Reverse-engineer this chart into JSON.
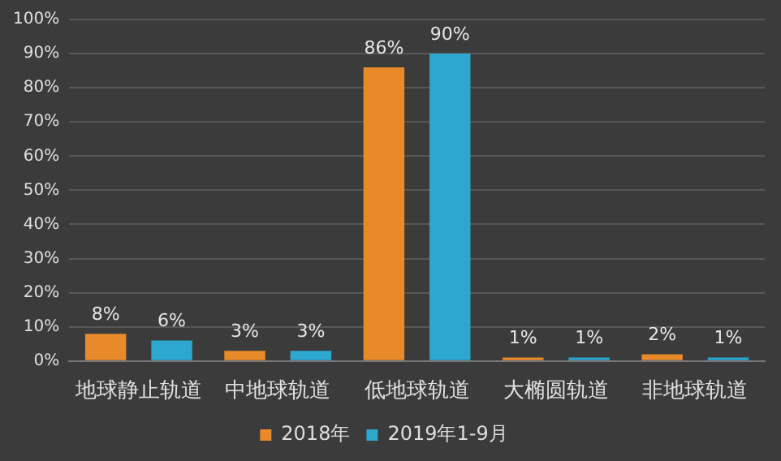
{
  "chart_data": {
    "type": "bar",
    "categories": [
      "地球静止轨道",
      "中地球轨道",
      "低地球轨道",
      "大椭圆轨道",
      "非地球轨道"
    ],
    "series": [
      {
        "name": "2018年",
        "color": "#e8892a",
        "values": [
          8,
          3,
          86,
          1,
          2
        ],
        "value_labels": [
          "8%",
          "3%",
          "86%",
          "1%",
          "2%"
        ]
      },
      {
        "name": "2019年1-9月",
        "color": "#2ba7d0",
        "values": [
          6,
          3,
          90,
          1,
          1
        ],
        "value_labels": [
          "6%",
          "3%",
          "90%",
          "1%",
          "1%"
        ]
      }
    ],
    "ylim": [
      0,
      100
    ],
    "yticks": [
      {
        "value": 0,
        "label": "0%"
      },
      {
        "value": 10,
        "label": "10%"
      },
      {
        "value": 20,
        "label": "20%"
      },
      {
        "value": 30,
        "label": "30%"
      },
      {
        "value": 40,
        "label": "40%"
      },
      {
        "value": 50,
        "label": "50%"
      },
      {
        "value": 60,
        "label": "60%"
      },
      {
        "value": 70,
        "label": "70%"
      },
      {
        "value": 80,
        "label": "80%"
      },
      {
        "value": 90,
        "label": "90%"
      },
      {
        "value": 100,
        "label": "100%"
      }
    ],
    "grid": "y",
    "legend": "bottom"
  }
}
